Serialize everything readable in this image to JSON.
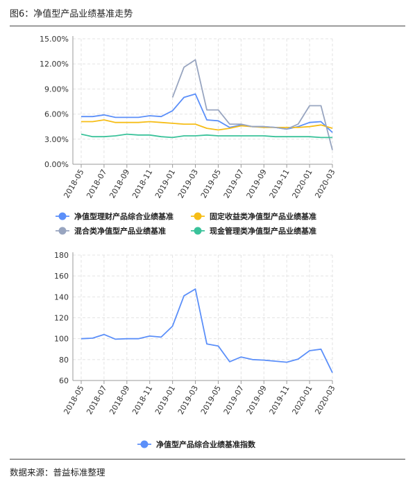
{
  "figure": {
    "title": "图6：净值型产品业绩基准走势",
    "source": "数据来源：普益标准整理"
  },
  "chart_data": [
    {
      "type": "line",
      "x": [
        "2018-05",
        "2018-06",
        "2018-07",
        "2018-08",
        "2018-09",
        "2018-10",
        "2018-11",
        "2018-12",
        "2019-01",
        "2019-02",
        "2019-03",
        "2019-04",
        "2019-05",
        "2019-06",
        "2019-07",
        "2019-08",
        "2019-09",
        "2019-10",
        "2019-11",
        "2019-12",
        "2020-01",
        "2020-02",
        "2020-03"
      ],
      "tick_labels": [
        "2018-05",
        "2018-07",
        "2018-09",
        "2018-11",
        "2019-01",
        "2019-03",
        "2019-05",
        "2019-07",
        "2019-09",
        "2019-11",
        "2020-01",
        "2020-03"
      ],
      "y_ticks": [
        "0.00%",
        "3.00%",
        "6.00%",
        "9.00%",
        "12.00%",
        "15.00%"
      ],
      "ylim": [
        0,
        15
      ],
      "y_unit": "%",
      "grid": true,
      "legend_position": "bottom",
      "series": [
        {
          "name": "净值型理财产品综合业绩基准",
          "color": "#5b8ff9",
          "values": [
            5.7,
            5.7,
            5.9,
            5.6,
            5.6,
            5.6,
            5.8,
            5.7,
            6.4,
            8.0,
            8.4,
            5.3,
            5.2,
            4.4,
            4.7,
            4.5,
            4.5,
            4.4,
            4.2,
            4.5,
            5.0,
            5.1,
            3.8
          ]
        },
        {
          "name": "固定收益类净值型产品业绩基准",
          "color": "#f6bd16",
          "values": [
            5.1,
            5.1,
            5.3,
            5.0,
            5.0,
            5.0,
            5.1,
            5.0,
            4.9,
            4.8,
            4.8,
            4.3,
            4.1,
            4.3,
            4.6,
            4.5,
            4.4,
            4.4,
            4.4,
            4.4,
            4.5,
            4.7,
            4.3
          ]
        },
        {
          "name": "混合类净值型产品业绩基准",
          "color": "#98a5c0",
          "values": [
            null,
            null,
            null,
            null,
            null,
            null,
            null,
            null,
            8.0,
            11.6,
            12.5,
            6.5,
            6.5,
            4.8,
            4.8,
            4.5,
            4.5,
            4.4,
            4.2,
            4.8,
            7.0,
            7.0,
            1.7
          ]
        },
        {
          "name": "现金管理类净值型产品业绩基准",
          "color": "#3ac29a",
          "values": [
            3.6,
            3.3,
            3.3,
            3.4,
            3.6,
            3.5,
            3.5,
            3.3,
            3.2,
            3.4,
            3.4,
            3.5,
            3.4,
            3.4,
            3.4,
            3.4,
            3.4,
            3.3,
            3.3,
            3.3,
            3.3,
            3.2,
            3.2
          ]
        }
      ]
    },
    {
      "type": "line",
      "x": [
        "2018-05",
        "2018-06",
        "2018-07",
        "2018-08",
        "2018-09",
        "2018-10",
        "2018-11",
        "2018-12",
        "2019-01",
        "2019-02",
        "2019-03",
        "2019-04",
        "2019-05",
        "2019-06",
        "2019-07",
        "2019-08",
        "2019-09",
        "2019-10",
        "2019-11",
        "2019-12",
        "2020-01",
        "2020-02",
        "2020-03"
      ],
      "tick_labels": [
        "2018-05",
        "2018-07",
        "2018-09",
        "2018-11",
        "2019-01",
        "2019-03",
        "2019-05",
        "2019-07",
        "2019-09",
        "2019-11",
        "2020-01",
        "2020-03"
      ],
      "y_ticks": [
        "60",
        "80",
        "100",
        "120",
        "140",
        "160",
        "180"
      ],
      "ylim": [
        60,
        180
      ],
      "grid": true,
      "legend_position": "bottom",
      "series": [
        {
          "name": "净值型产品综合业绩基准指数",
          "color": "#5b8ff9",
          "values": [
            100,
            100.5,
            104,
            99.5,
            100,
            100,
            102.5,
            101.5,
            112,
            141,
            147.5,
            95,
            93,
            78,
            82.5,
            80,
            79.5,
            78.5,
            77.5,
            80.5,
            88.5,
            90,
            67.5
          ]
        }
      ]
    }
  ]
}
